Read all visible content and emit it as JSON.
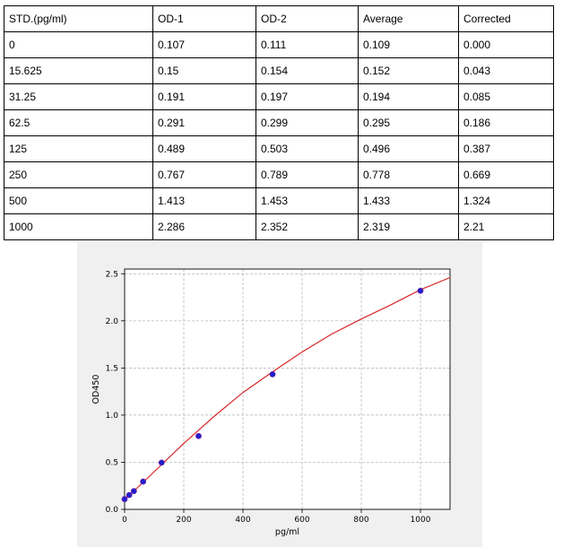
{
  "table": {
    "headers": [
      "STD.(pg/ml)",
      "OD-1",
      "OD-2",
      "Average",
      "Corrected"
    ],
    "rows": [
      [
        "0",
        "0.107",
        "0.111",
        "0.109",
        "0.000"
      ],
      [
        "15.625",
        "0.15",
        "0.154",
        "0.152",
        "0.043"
      ],
      [
        "31.25",
        "0.191",
        "0.197",
        "0.194",
        "0.085"
      ],
      [
        "62.5",
        "0.291",
        "0.299",
        "0.295",
        "0.186"
      ],
      [
        "125",
        "0.489",
        "0.503",
        "0.496",
        "0.387"
      ],
      [
        "250",
        "0.767",
        "0.789",
        "0.778",
        "0.669"
      ],
      [
        "500",
        "1.413",
        "1.453",
        "1.433",
        "1.324"
      ],
      [
        "1000",
        "2.286",
        "2.352",
        "2.319",
        "2.21"
      ]
    ]
  },
  "chart_data": {
    "type": "scatter",
    "xlabel": "pg/ml",
    "ylabel": "OD450",
    "xlim": [
      0,
      1100
    ],
    "ylim": [
      0,
      2.55
    ],
    "xticks": [
      0,
      200,
      400,
      600,
      800,
      1000
    ],
    "yticks": [
      0.0,
      0.5,
      1.0,
      1.5,
      2.0,
      2.5
    ],
    "xtick_labels": [
      "0",
      "200",
      "400",
      "600",
      "800",
      "1000"
    ],
    "ytick_labels": [
      "0.0",
      "0.5",
      "1.0",
      "1.5",
      "2.0",
      "2.5"
    ],
    "grid": true,
    "points": {
      "x": [
        0,
        15.625,
        31.25,
        62.5,
        125,
        250,
        500,
        1000
      ],
      "y": [
        0.109,
        0.152,
        0.194,
        0.295,
        0.496,
        0.778,
        1.433,
        2.319
      ]
    },
    "fit_curve": {
      "x": [
        0,
        100,
        200,
        300,
        400,
        500,
        600,
        700,
        800,
        900,
        1000,
        1100
      ],
      "y": [
        0.1,
        0.4,
        0.7,
        0.98,
        1.24,
        1.46,
        1.67,
        1.86,
        2.02,
        2.17,
        2.33,
        2.46
      ]
    },
    "colors": {
      "points": "#1f1fcf",
      "point_edge": "#6a1fa0",
      "curve": "#d62728",
      "background": "#f0f0f0",
      "grid": "#b0b0b0"
    }
  }
}
